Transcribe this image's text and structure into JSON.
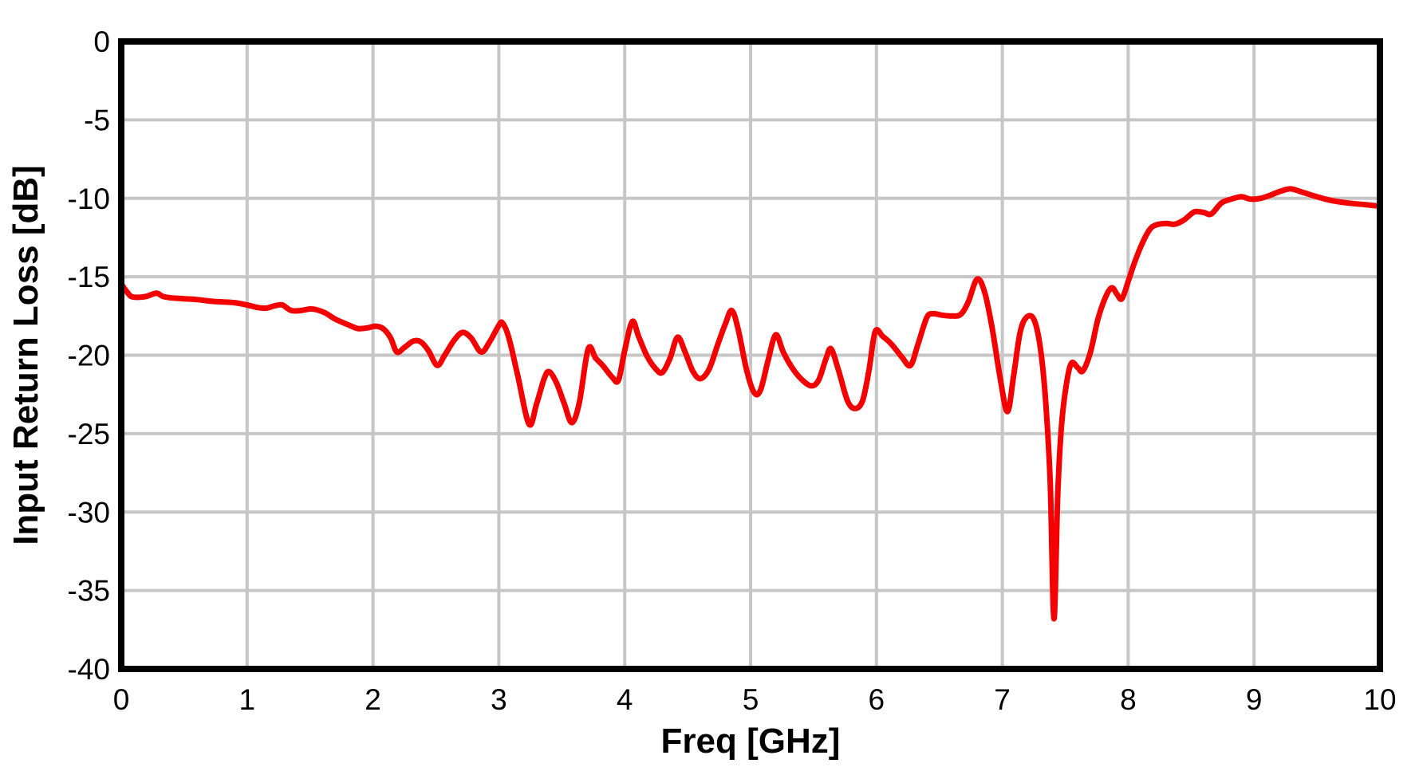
{
  "chart_data": {
    "type": "line",
    "title": "",
    "xlabel": "Freq [GHz]",
    "ylabel": "Input Return Loss [dB]",
    "xlim": [
      0,
      10
    ],
    "ylim": [
      -40,
      0
    ],
    "xticks": [
      0,
      1,
      2,
      3,
      4,
      5,
      6,
      7,
      8,
      9,
      10
    ],
    "yticks": [
      0,
      -5,
      -10,
      -15,
      -20,
      -25,
      -30,
      -35,
      -40
    ],
    "grid": true,
    "legend": "none",
    "colors": {
      "trace": "#F40000",
      "grid": "#C6C6C6",
      "axis": "#000000",
      "background": "#FFFFFF"
    },
    "series": [
      {
        "name": "Input Return Loss",
        "points": [
          [
            0.0,
            -15.45
          ],
          [
            0.03,
            -15.8
          ],
          [
            0.07,
            -16.2
          ],
          [
            0.1,
            -16.3
          ],
          [
            0.15,
            -16.3
          ],
          [
            0.2,
            -16.25
          ],
          [
            0.28,
            -16.05
          ],
          [
            0.33,
            -16.25
          ],
          [
            0.4,
            -16.35
          ],
          [
            0.5,
            -16.4
          ],
          [
            0.6,
            -16.45
          ],
          [
            0.7,
            -16.55
          ],
          [
            0.8,
            -16.6
          ],
          [
            0.9,
            -16.65
          ],
          [
            1.0,
            -16.8
          ],
          [
            1.08,
            -16.95
          ],
          [
            1.15,
            -17.0
          ],
          [
            1.22,
            -16.85
          ],
          [
            1.28,
            -16.8
          ],
          [
            1.35,
            -17.15
          ],
          [
            1.43,
            -17.15
          ],
          [
            1.5,
            -17.05
          ],
          [
            1.55,
            -17.1
          ],
          [
            1.62,
            -17.3
          ],
          [
            1.7,
            -17.7
          ],
          [
            1.8,
            -18.05
          ],
          [
            1.88,
            -18.3
          ],
          [
            1.96,
            -18.25
          ],
          [
            2.02,
            -18.15
          ],
          [
            2.08,
            -18.3
          ],
          [
            2.14,
            -18.9
          ],
          [
            2.19,
            -19.8
          ],
          [
            2.25,
            -19.5
          ],
          [
            2.32,
            -19.1
          ],
          [
            2.38,
            -19.15
          ],
          [
            2.44,
            -19.7
          ],
          [
            2.51,
            -20.65
          ],
          [
            2.57,
            -20.0
          ],
          [
            2.64,
            -19.1
          ],
          [
            2.71,
            -18.55
          ],
          [
            2.78,
            -18.9
          ],
          [
            2.86,
            -19.8
          ],
          [
            2.93,
            -19.1
          ],
          [
            3.0,
            -18.1
          ],
          [
            3.03,
            -17.95
          ],
          [
            3.08,
            -18.9
          ],
          [
            3.15,
            -21.3
          ],
          [
            3.24,
            -24.4
          ],
          [
            3.3,
            -23.1
          ],
          [
            3.36,
            -21.5
          ],
          [
            3.4,
            -21.05
          ],
          [
            3.46,
            -21.8
          ],
          [
            3.52,
            -23.1
          ],
          [
            3.58,
            -24.3
          ],
          [
            3.64,
            -23.0
          ],
          [
            3.71,
            -19.6
          ],
          [
            3.77,
            -20.2
          ],
          [
            3.83,
            -20.7
          ],
          [
            3.9,
            -21.4
          ],
          [
            3.95,
            -21.6
          ],
          [
            4.0,
            -19.7
          ],
          [
            4.06,
            -17.85
          ],
          [
            4.11,
            -18.8
          ],
          [
            4.18,
            -20.1
          ],
          [
            4.25,
            -20.9
          ],
          [
            4.3,
            -21.1
          ],
          [
            4.36,
            -20.2
          ],
          [
            4.42,
            -18.85
          ],
          [
            4.48,
            -19.8
          ],
          [
            4.54,
            -21.0
          ],
          [
            4.6,
            -21.5
          ],
          [
            4.67,
            -20.9
          ],
          [
            4.74,
            -19.3
          ],
          [
            4.8,
            -18.0
          ],
          [
            4.85,
            -17.15
          ],
          [
            4.9,
            -18.3
          ],
          [
            4.97,
            -21.0
          ],
          [
            5.03,
            -22.4
          ],
          [
            5.08,
            -22.2
          ],
          [
            5.14,
            -20.3
          ],
          [
            5.2,
            -18.7
          ],
          [
            5.26,
            -19.8
          ],
          [
            5.33,
            -20.8
          ],
          [
            5.4,
            -21.5
          ],
          [
            5.48,
            -21.95
          ],
          [
            5.54,
            -21.6
          ],
          [
            5.6,
            -20.2
          ],
          [
            5.64,
            -19.6
          ],
          [
            5.7,
            -21.0
          ],
          [
            5.77,
            -22.9
          ],
          [
            5.83,
            -23.4
          ],
          [
            5.89,
            -22.9
          ],
          [
            5.94,
            -21.0
          ],
          [
            5.99,
            -18.5
          ],
          [
            6.05,
            -18.8
          ],
          [
            6.12,
            -19.3
          ],
          [
            6.2,
            -20.1
          ],
          [
            6.27,
            -20.65
          ],
          [
            6.33,
            -19.3
          ],
          [
            6.4,
            -17.6
          ],
          [
            6.45,
            -17.35
          ],
          [
            6.52,
            -17.45
          ],
          [
            6.6,
            -17.5
          ],
          [
            6.67,
            -17.4
          ],
          [
            6.73,
            -16.6
          ],
          [
            6.8,
            -15.15
          ],
          [
            6.86,
            -16.0
          ],
          [
            6.92,
            -18.3
          ],
          [
            6.98,
            -21.3
          ],
          [
            7.04,
            -23.6
          ],
          [
            7.09,
            -21.3
          ],
          [
            7.14,
            -18.6
          ],
          [
            7.19,
            -17.6
          ],
          [
            7.25,
            -17.7
          ],
          [
            7.3,
            -19.4
          ],
          [
            7.34,
            -22.5
          ],
          [
            7.38,
            -28.0
          ],
          [
            7.41,
            -36.8
          ],
          [
            7.44,
            -29.0
          ],
          [
            7.47,
            -24.5
          ],
          [
            7.51,
            -21.8
          ],
          [
            7.55,
            -20.5
          ],
          [
            7.6,
            -20.8
          ],
          [
            7.64,
            -21.0
          ],
          [
            7.7,
            -19.8
          ],
          [
            7.76,
            -17.7
          ],
          [
            7.82,
            -16.3
          ],
          [
            7.87,
            -15.7
          ],
          [
            7.91,
            -16.1
          ],
          [
            7.95,
            -16.4
          ],
          [
            8.0,
            -15.3
          ],
          [
            8.05,
            -14.1
          ],
          [
            8.11,
            -12.9
          ],
          [
            8.17,
            -12.0
          ],
          [
            8.22,
            -11.7
          ],
          [
            8.3,
            -11.6
          ],
          [
            8.37,
            -11.65
          ],
          [
            8.44,
            -11.4
          ],
          [
            8.47,
            -11.2
          ],
          [
            8.53,
            -10.85
          ],
          [
            8.6,
            -10.9
          ],
          [
            8.66,
            -11.0
          ],
          [
            8.74,
            -10.3
          ],
          [
            8.82,
            -10.05
          ],
          [
            8.9,
            -9.9
          ],
          [
            8.97,
            -10.05
          ],
          [
            9.05,
            -10.0
          ],
          [
            9.13,
            -9.8
          ],
          [
            9.21,
            -9.55
          ],
          [
            9.29,
            -9.4
          ],
          [
            9.38,
            -9.6
          ],
          [
            9.5,
            -9.9
          ],
          [
            9.62,
            -10.15
          ],
          [
            9.75,
            -10.3
          ],
          [
            9.88,
            -10.4
          ],
          [
            10.0,
            -10.5
          ]
        ]
      }
    ]
  }
}
